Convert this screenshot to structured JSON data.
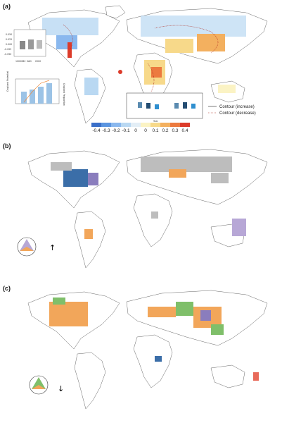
{
  "panels": {
    "a": {
      "label": "(a)"
    },
    "b": {
      "label": "(b)"
    },
    "c": {
      "label": "(c)"
    }
  },
  "colorbar": {
    "ticks": [
      "-0.4",
      "-0.3",
      "-0.2",
      "-0.1",
      "0",
      "0",
      "0.1",
      "0.2",
      "0.3",
      "0.4"
    ],
    "colors": [
      "#3a6fc9",
      "#5b95e0",
      "#8ab8ee",
      "#b9d8f2",
      "#e3eef6",
      "#fbf3c4",
      "#f7d98a",
      "#f3b05f",
      "#ec7a3f",
      "#dc3b2a"
    ]
  },
  "legend_a": {
    "increase_label": "Contour (increase)",
    "decrease_label": "Contour (decrease)"
  },
  "inset_box_a": {
    "y_ticks": [
      "0.050",
      "0.025",
      "0.000",
      "-0.025",
      "-0.050"
    ],
    "x_ticks": [
      "10000BC",
      "0AD",
      "2000"
    ]
  },
  "inset_bar_a": {
    "left_label": "Cropland Potential",
    "right_label": "Cropland Proportion",
    "left_ticks": [
      "1.8",
      "1.6",
      "1.4"
    ],
    "right_ticks": [
      "30",
      "20",
      "10",
      "0"
    ],
    "x_ticks": [
      "10000BC",
      "1000",
      "1850",
      "1950"
    ]
  },
  "inset_pair_a": {
    "left_ylabel": "Cropland Proportion (%)",
    "right_ylabel": "Cropping Intensity",
    "left_ticks": [
      "1.5",
      "0",
      "-1.5",
      "-3.0"
    ],
    "right_ticks": [
      "0.10",
      "0.05",
      "0",
      "-0.05"
    ],
    "x_ticks": [
      "10000BC",
      "1850",
      "1990"
    ],
    "xlabel": "Year"
  },
  "arrow_b": "↑",
  "arrow_c": "↓"
}
